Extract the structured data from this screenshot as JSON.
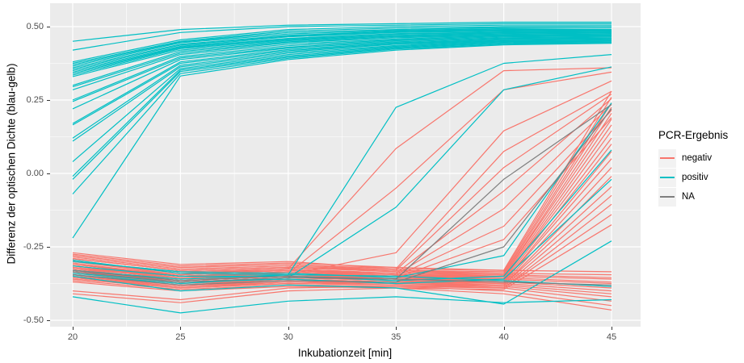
{
  "chart_data": {
    "type": "line",
    "title": "",
    "xlabel": "Inkubationzeit [min]",
    "ylabel": "Differenz der optischen Dichte (blau-gelb)",
    "x": [
      20,
      25,
      30,
      35,
      40,
      45
    ],
    "x_tick_labels": [
      "20",
      "25",
      "30",
      "35",
      "40",
      "45"
    ],
    "y_tick_values": [
      0.5,
      0.25,
      0.0,
      -0.25,
      -0.5
    ],
    "y_tick_labels": [
      "0.50",
      "0.25",
      "0.00",
      "-0.25",
      "-0.50"
    ],
    "x_minor_ticks": [
      22.5,
      27.5,
      32.5,
      37.5,
      42.5
    ],
    "y_minor_ticks": [
      0.375,
      0.125,
      -0.125,
      -0.375
    ],
    "xlim": [
      18.95,
      46.35
    ],
    "ylim": [
      -0.522,
      0.58
    ],
    "grid": "white major and minor gridlines on grey panel",
    "panel_background": "#EBEBEB",
    "gridline_color": "#FFFFFF",
    "legend_position": "right",
    "legend_title": "PCR-Ergebnis",
    "groups": [
      {
        "name": "negativ",
        "color": "#F8766D"
      },
      {
        "name": "positiv",
        "color": "#00BFC4"
      },
      {
        "name": "NA",
        "color": "#7F7F7F"
      }
    ],
    "series": [
      {
        "group": "negativ",
        "values": [
          -0.3,
          -0.335,
          -0.325,
          0.085,
          0.35,
          0.36
        ]
      },
      {
        "group": "negativ",
        "values": [
          -0.315,
          -0.35,
          -0.34,
          -0.05,
          0.285,
          0.345
        ]
      },
      {
        "group": "negativ",
        "values": [
          -0.325,
          -0.355,
          -0.345,
          -0.27,
          0.145,
          0.315
        ]
      },
      {
        "group": "negativ",
        "values": [
          -0.28,
          -0.32,
          -0.31,
          -0.325,
          0.075,
          0.28
        ]
      },
      {
        "group": "negativ",
        "values": [
          -0.29,
          -0.33,
          -0.32,
          -0.33,
          0.02,
          0.27
        ]
      },
      {
        "group": "negativ",
        "values": [
          -0.3,
          -0.34,
          -0.33,
          -0.34,
          -0.06,
          0.255
        ]
      },
      {
        "group": "negativ",
        "values": [
          -0.31,
          -0.35,
          -0.335,
          -0.345,
          -0.12,
          0.235
        ]
      },
      {
        "group": "negativ",
        "values": [
          -0.32,
          -0.355,
          -0.34,
          -0.35,
          -0.18,
          0.215
        ]
      },
      {
        "group": "negativ",
        "values": [
          -0.33,
          -0.36,
          -0.35,
          -0.355,
          -0.225,
          0.19
        ]
      },
      {
        "group": "negativ",
        "values": [
          -0.275,
          -0.315,
          -0.305,
          -0.32,
          -0.33,
          0.28
        ]
      },
      {
        "group": "negativ",
        "values": [
          -0.285,
          -0.325,
          -0.315,
          -0.33,
          -0.335,
          0.26
        ]
      },
      {
        "group": "negativ",
        "values": [
          -0.29,
          -0.33,
          -0.32,
          -0.335,
          -0.34,
          0.24
        ]
      },
      {
        "group": "negativ",
        "values": [
          -0.295,
          -0.34,
          -0.325,
          -0.34,
          -0.345,
          0.225
        ]
      },
      {
        "group": "negativ",
        "values": [
          -0.3,
          -0.345,
          -0.33,
          -0.345,
          -0.35,
          0.205
        ]
      },
      {
        "group": "negativ",
        "values": [
          -0.305,
          -0.35,
          -0.335,
          -0.35,
          -0.35,
          0.185
        ]
      },
      {
        "group": "negativ",
        "values": [
          -0.31,
          -0.35,
          -0.34,
          -0.35,
          -0.355,
          0.165
        ]
      },
      {
        "group": "negativ",
        "values": [
          -0.315,
          -0.355,
          -0.345,
          -0.355,
          -0.36,
          0.145
        ]
      },
      {
        "group": "negativ",
        "values": [
          -0.32,
          -0.36,
          -0.35,
          -0.36,
          -0.36,
          0.12
        ]
      },
      {
        "group": "negativ",
        "values": [
          -0.325,
          -0.365,
          -0.35,
          -0.36,
          -0.365,
          0.1
        ]
      },
      {
        "group": "negativ",
        "values": [
          -0.33,
          -0.37,
          -0.355,
          -0.365,
          -0.37,
          0.075
        ]
      },
      {
        "group": "negativ",
        "values": [
          -0.335,
          -0.375,
          -0.36,
          -0.37,
          -0.37,
          0.05
        ]
      },
      {
        "group": "negativ",
        "values": [
          -0.34,
          -0.375,
          -0.36,
          -0.37,
          -0.375,
          0.02
        ]
      },
      {
        "group": "negativ",
        "values": [
          -0.345,
          -0.38,
          -0.365,
          -0.375,
          -0.38,
          -0.01
        ]
      },
      {
        "group": "negativ",
        "values": [
          -0.35,
          -0.385,
          -0.37,
          -0.375,
          -0.38,
          -0.045
        ]
      },
      {
        "group": "negativ",
        "values": [
          -0.355,
          -0.39,
          -0.375,
          -0.38,
          -0.385,
          -0.075
        ]
      },
      {
        "group": "negativ",
        "values": [
          -0.36,
          -0.39,
          -0.375,
          -0.38,
          -0.39,
          -0.105
        ]
      },
      {
        "group": "negativ",
        "values": [
          -0.365,
          -0.395,
          -0.38,
          -0.385,
          -0.39,
          -0.14
        ]
      },
      {
        "group": "negativ",
        "values": [
          -0.37,
          -0.4,
          -0.385,
          -0.39,
          -0.395,
          -0.175
        ]
      },
      {
        "group": "negativ",
        "values": [
          -0.27,
          -0.31,
          -0.3,
          -0.325,
          -0.33,
          -0.335
        ]
      },
      {
        "group": "negativ",
        "values": [
          -0.28,
          -0.32,
          -0.31,
          -0.33,
          -0.34,
          -0.345
        ]
      },
      {
        "group": "negativ",
        "values": [
          -0.29,
          -0.33,
          -0.32,
          -0.335,
          -0.345,
          -0.355
        ]
      },
      {
        "group": "negativ",
        "values": [
          -0.3,
          -0.335,
          -0.325,
          -0.34,
          -0.35,
          -0.36
        ]
      },
      {
        "group": "negativ",
        "values": [
          -0.31,
          -0.345,
          -0.33,
          -0.345,
          -0.355,
          -0.37
        ]
      },
      {
        "group": "negativ",
        "values": [
          -0.32,
          -0.35,
          -0.34,
          -0.35,
          -0.36,
          -0.375
        ]
      },
      {
        "group": "negativ",
        "values": [
          -0.33,
          -0.36,
          -0.345,
          -0.355,
          -0.365,
          -0.385
        ]
      },
      {
        "group": "negativ",
        "values": [
          -0.335,
          -0.365,
          -0.35,
          -0.36,
          -0.37,
          -0.39
        ]
      },
      {
        "group": "negativ",
        "values": [
          -0.34,
          -0.37,
          -0.355,
          -0.365,
          -0.375,
          -0.4
        ]
      },
      {
        "group": "negativ",
        "values": [
          -0.35,
          -0.38,
          -0.36,
          -0.37,
          -0.38,
          -0.41
        ]
      },
      {
        "group": "negativ",
        "values": [
          -0.355,
          -0.385,
          -0.365,
          -0.375,
          -0.385,
          -0.42
        ]
      },
      {
        "group": "negativ",
        "values": [
          -0.36,
          -0.39,
          -0.37,
          -0.38,
          -0.39,
          -0.435
        ]
      },
      {
        "group": "negativ",
        "values": [
          -0.4,
          -0.43,
          -0.39,
          -0.385,
          -0.4,
          -0.45
        ]
      },
      {
        "group": "negativ",
        "values": [
          -0.41,
          -0.44,
          -0.4,
          -0.39,
          -0.41,
          -0.465
        ]
      },
      {
        "group": "positiv",
        "values": [
          0.45,
          0.49,
          0.505,
          0.51,
          0.515,
          0.515
        ]
      },
      {
        "group": "positiv",
        "values": [
          0.42,
          0.48,
          0.5,
          0.505,
          0.51,
          0.51
        ]
      },
      {
        "group": "positiv",
        "values": [
          0.38,
          0.455,
          0.49,
          0.5,
          0.505,
          0.505
        ]
      },
      {
        "group": "positiv",
        "values": [
          0.375,
          0.45,
          0.485,
          0.495,
          0.5,
          0.5
        ]
      },
      {
        "group": "positiv",
        "values": [
          0.37,
          0.448,
          0.48,
          0.49,
          0.497,
          0.5
        ]
      },
      {
        "group": "positiv",
        "values": [
          0.365,
          0.445,
          0.475,
          0.487,
          0.493,
          0.495
        ]
      },
      {
        "group": "positiv",
        "values": [
          0.36,
          0.44,
          0.47,
          0.485,
          0.49,
          0.49
        ]
      },
      {
        "group": "positiv",
        "values": [
          0.355,
          0.437,
          0.468,
          0.482,
          0.488,
          0.488
        ]
      },
      {
        "group": "positiv",
        "values": [
          0.35,
          0.433,
          0.465,
          0.48,
          0.485,
          0.487
        ]
      },
      {
        "group": "positiv",
        "values": [
          0.345,
          0.43,
          0.46,
          0.476,
          0.482,
          0.485
        ]
      },
      {
        "group": "positiv",
        "values": [
          0.34,
          0.428,
          0.458,
          0.474,
          0.48,
          0.482
        ]
      },
      {
        "group": "positiv",
        "values": [
          0.335,
          0.425,
          0.455,
          0.47,
          0.478,
          0.48
        ]
      },
      {
        "group": "positiv",
        "values": [
          0.33,
          0.42,
          0.452,
          0.468,
          0.475,
          0.478
        ]
      },
      {
        "group": "positiv",
        "values": [
          0.3,
          0.415,
          0.448,
          0.465,
          0.472,
          0.475
        ]
      },
      {
        "group": "positiv",
        "values": [
          0.295,
          0.41,
          0.445,
          0.462,
          0.47,
          0.472
        ]
      },
      {
        "group": "positiv",
        "values": [
          0.285,
          0.405,
          0.44,
          0.458,
          0.468,
          0.47
        ]
      },
      {
        "group": "positiv",
        "values": [
          0.25,
          0.398,
          0.435,
          0.455,
          0.465,
          0.468
        ]
      },
      {
        "group": "positiv",
        "values": [
          0.245,
          0.393,
          0.43,
          0.452,
          0.462,
          0.465
        ]
      },
      {
        "group": "positiv",
        "values": [
          0.22,
          0.388,
          0.427,
          0.448,
          0.46,
          0.462
        ]
      },
      {
        "group": "positiv",
        "values": [
          0.17,
          0.38,
          0.422,
          0.445,
          0.457,
          0.46
        ]
      },
      {
        "group": "positiv",
        "values": [
          0.165,
          0.375,
          0.418,
          0.442,
          0.455,
          0.458
        ]
      },
      {
        "group": "positiv",
        "values": [
          0.12,
          0.368,
          0.414,
          0.44,
          0.452,
          0.455
        ]
      },
      {
        "group": "positiv",
        "values": [
          0.11,
          0.363,
          0.41,
          0.436,
          0.45,
          0.453
        ]
      },
      {
        "group": "positiv",
        "values": [
          0.04,
          0.357,
          0.405,
          0.433,
          0.448,
          0.45
        ]
      },
      {
        "group": "positiv",
        "values": [
          -0.01,
          0.352,
          0.4,
          0.43,
          0.445,
          0.45
        ]
      },
      {
        "group": "positiv",
        "values": [
          -0.02,
          0.347,
          0.396,
          0.427,
          0.443,
          0.447
        ]
      },
      {
        "group": "positiv",
        "values": [
          -0.07,
          0.34,
          0.392,
          0.424,
          0.44,
          0.445
        ]
      },
      {
        "group": "positiv",
        "values": [
          -0.22,
          0.332,
          0.388,
          0.42,
          0.438,
          0.443
        ]
      },
      {
        "group": "positiv",
        "values": [
          -0.33,
          -0.36,
          -0.345,
          0.225,
          0.375,
          0.405
        ]
      },
      {
        "group": "positiv",
        "values": [
          -0.345,
          -0.375,
          -0.355,
          -0.115,
          0.285,
          0.363
        ]
      },
      {
        "group": "positiv",
        "values": [
          -0.3,
          -0.335,
          -0.34,
          -0.355,
          -0.28,
          0.24
        ]
      },
      {
        "group": "positiv",
        "values": [
          -0.315,
          -0.35,
          -0.35,
          -0.365,
          -0.35,
          0.08
        ]
      },
      {
        "group": "positiv",
        "values": [
          -0.34,
          -0.37,
          -0.36,
          -0.375,
          -0.36,
          -0.02
        ]
      },
      {
        "group": "positiv",
        "values": [
          -0.35,
          -0.4,
          -0.38,
          -0.39,
          -0.445,
          -0.23
        ]
      },
      {
        "group": "positiv",
        "values": [
          -0.42,
          -0.475,
          -0.435,
          -0.42,
          -0.44,
          -0.43
        ]
      },
      {
        "group": "positiv",
        "values": [
          -0.295,
          -0.34,
          -0.345,
          -0.35,
          -0.365,
          -0.385
        ]
      },
      {
        "group": "NA",
        "values": [
          -0.335,
          -0.37,
          -0.355,
          -0.36,
          -0.02,
          0.235
        ]
      },
      {
        "group": "NA",
        "values": [
          -0.345,
          -0.38,
          -0.365,
          -0.37,
          -0.25,
          0.22
        ]
      },
      {
        "group": "NA",
        "values": [
          -0.33,
          -0.365,
          -0.35,
          -0.36,
          -0.37,
          -0.38
        ]
      }
    ]
  },
  "legend": {
    "title": "PCR-Ergebnis",
    "items": [
      {
        "label": "negativ",
        "color": "#F8766D"
      },
      {
        "label": "positiv",
        "color": "#00BFC4"
      },
      {
        "label": "NA",
        "color": "#7F7F7F"
      }
    ]
  }
}
